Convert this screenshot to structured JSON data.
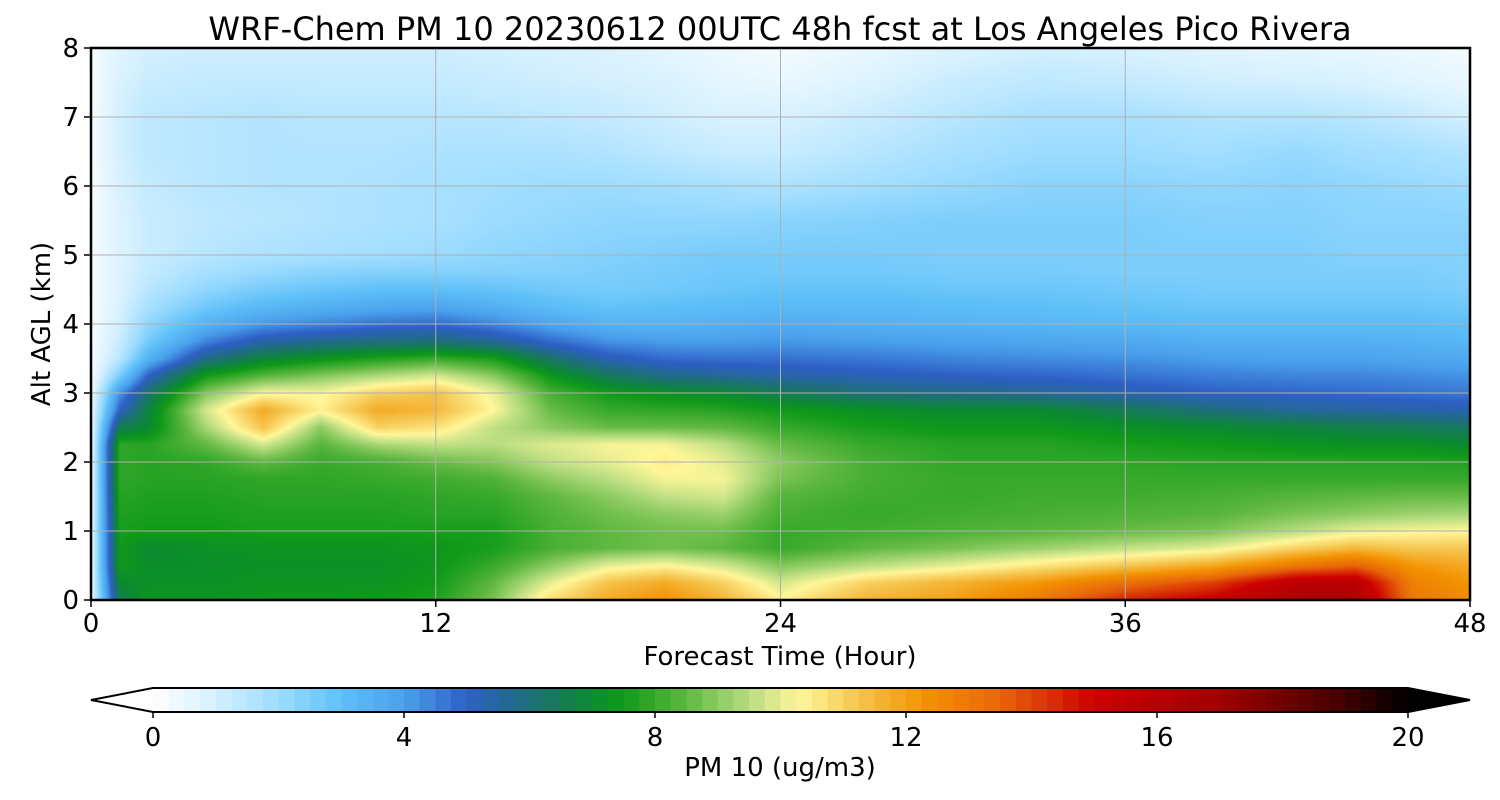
{
  "chart_data": {
    "type": "heatmap",
    "title": "WRF-Chem PM 10  20230612 00UTC 48h fcst at Los Angeles Pico Rivera",
    "xlabel": "Forecast Time (Hour)",
    "ylabel": "Alt AGL (km)",
    "xlim": [
      0,
      48
    ],
    "ylim": [
      0,
      8
    ],
    "x_ticks": [
      0,
      12,
      24,
      36,
      48
    ],
    "y_ticks": [
      0,
      1,
      2,
      3,
      4,
      5,
      6,
      7,
      8
    ],
    "grid": true,
    "colorbar": {
      "label": "PM 10  (ug/m3)",
      "min": 0,
      "max": 20,
      "ticks": [
        0,
        4,
        8,
        12,
        16,
        20
      ],
      "extend": "both",
      "placement": "bottom",
      "stops": [
        {
          "v": 0,
          "c": "#ffffff"
        },
        {
          "v": 1,
          "c": "#d4f0ff"
        },
        {
          "v": 2,
          "c": "#9ddcff"
        },
        {
          "v": 3,
          "c": "#5ec0f8"
        },
        {
          "v": 4,
          "c": "#4aa0ec"
        },
        {
          "v": 5,
          "c": "#2e5fc6"
        },
        {
          "v": 6,
          "c": "#1d6f78"
        },
        {
          "v": 7,
          "c": "#0b8a30"
        },
        {
          "v": 7.5,
          "c": "#109a18"
        },
        {
          "v": 8.5,
          "c": "#5fb840"
        },
        {
          "v": 9.5,
          "c": "#b8dd80"
        },
        {
          "v": 10.3,
          "c": "#fff79a"
        },
        {
          "v": 11.3,
          "c": "#f5c24a"
        },
        {
          "v": 12.3,
          "c": "#f39200"
        },
        {
          "v": 13.5,
          "c": "#e8650a"
        },
        {
          "v": 15,
          "c": "#cd0000"
        },
        {
          "v": 17,
          "c": "#a00000"
        },
        {
          "v": 19,
          "c": "#400000"
        },
        {
          "v": 20,
          "c": "#000000"
        }
      ]
    },
    "x": [
      0,
      1,
      2,
      4,
      6,
      8,
      10,
      12,
      14,
      16,
      18,
      20,
      22,
      24,
      27,
      30,
      33,
      36,
      39,
      42,
      44,
      46,
      48
    ],
    "y": [
      0,
      0.25,
      0.5,
      0.75,
      1,
      1.25,
      1.5,
      1.75,
      2,
      2.25,
      2.5,
      2.75,
      3,
      3.25,
      3.5,
      3.75,
      4,
      4.25,
      4.5,
      4.75,
      5,
      5.5,
      6,
      6.5,
      7,
      7.5,
      8
    ],
    "values": [
      [
        0.5,
        6.5,
        7.3,
        7.3,
        7.4,
        7.4,
        7.5,
        7.7,
        8.8,
        10.8,
        11.8,
        12.3,
        11.6,
        10.4,
        11.6,
        12.0,
        13.0,
        14.5,
        15.2,
        16.5,
        16.5,
        13.0,
        12.5
      ],
      [
        0.5,
        7.0,
        7.2,
        7.2,
        7.3,
        7.3,
        7.3,
        7.5,
        8.5,
        10.0,
        11.3,
        11.8,
        11.0,
        9.8,
        11.0,
        11.6,
        12.2,
        13.2,
        14.0,
        15.8,
        15.8,
        12.8,
        12.2
      ],
      [
        0.5,
        7.5,
        7.1,
        7.1,
        7.2,
        7.2,
        7.2,
        7.4,
        8.0,
        9.0,
        10.0,
        10.3,
        9.8,
        8.9,
        9.5,
        10.0,
        10.6,
        11.2,
        11.8,
        13.0,
        13.5,
        12.2,
        11.8
      ],
      [
        0.5,
        7.5,
        7.0,
        7.2,
        7.3,
        7.3,
        7.3,
        7.4,
        7.6,
        8.2,
        8.5,
        8.7,
        8.5,
        8.0,
        8.5,
        8.8,
        9.2,
        9.6,
        10.0,
        11.0,
        11.5,
        11.2,
        11.2
      ],
      [
        0.5,
        7.6,
        7.5,
        7.5,
        7.6,
        7.6,
        7.6,
        7.6,
        7.6,
        8.2,
        8.5,
        8.7,
        8.7,
        8.0,
        8.1,
        8.3,
        8.4,
        8.6,
        8.8,
        9.5,
        10.0,
        10.2,
        10.3
      ],
      [
        0.5,
        7.7,
        7.6,
        7.6,
        7.7,
        7.7,
        7.7,
        7.8,
        7.8,
        8.3,
        8.7,
        9.0,
        9.2,
        8.2,
        8.0,
        8.1,
        8.2,
        8.3,
        8.4,
        8.8,
        9.0,
        9.2,
        9.3
      ],
      [
        0.5,
        7.8,
        7.7,
        7.7,
        7.8,
        7.8,
        7.8,
        7.9,
        8.0,
        8.5,
        9.0,
        9.6,
        9.8,
        8.4,
        8.1,
        8.0,
        8.1,
        8.1,
        8.2,
        8.4,
        8.5,
        8.6,
        8.6
      ],
      [
        0.5,
        7.9,
        7.8,
        7.8,
        7.9,
        7.9,
        8.0,
        8.1,
        8.3,
        9.0,
        9.5,
        10.2,
        10.2,
        8.8,
        8.2,
        8.0,
        8.0,
        8.0,
        8.0,
        8.0,
        8.0,
        8.0,
        8.0
      ],
      [
        0.5,
        7.9,
        7.8,
        7.9,
        8.5,
        8.0,
        8.2,
        8.6,
        8.9,
        9.6,
        10.0,
        10.5,
        10.0,
        9.0,
        8.2,
        7.9,
        7.9,
        7.9,
        7.8,
        7.8,
        7.8,
        7.8,
        7.7
      ],
      [
        0.5,
        7.9,
        7.8,
        8.5,
        9.8,
        8.4,
        9.3,
        9.6,
        9.5,
        9.9,
        10.2,
        10.2,
        9.6,
        8.6,
        8.0,
        7.8,
        7.8,
        7.6,
        7.5,
        7.3,
        7.2,
        7.2,
        7.0
      ],
      [
        0.5,
        6.5,
        7.0,
        9.3,
        11.3,
        9.0,
        11.0,
        10.7,
        9.6,
        9.0,
        8.6,
        8.6,
        8.5,
        8.0,
        7.6,
        7.4,
        7.4,
        7.2,
        7.0,
        6.8,
        6.6,
        6.5,
        6.3
      ],
      [
        0.5,
        5.0,
        6.8,
        9.8,
        11.8,
        10.4,
        11.8,
        11.5,
        10.3,
        8.6,
        8.0,
        7.9,
        7.8,
        7.5,
        7.2,
        7.0,
        7.0,
        6.5,
        6.0,
        5.6,
        5.5,
        5.4,
        5.3
      ],
      [
        0.3,
        4.2,
        6.2,
        8.9,
        10.2,
        10.2,
        11.0,
        11.3,
        10.1,
        8.2,
        7.5,
        7.2,
        7.0,
        6.5,
        6.0,
        5.8,
        5.6,
        5.3,
        5.0,
        4.9,
        4.8,
        4.7,
        4.6
      ],
      [
        0.2,
        2.5,
        5.0,
        7.5,
        8.4,
        8.9,
        9.4,
        9.8,
        9.0,
        7.4,
        6.4,
        5.8,
        5.6,
        5.4,
        5.2,
        5.0,
        4.9,
        4.7,
        4.5,
        4.4,
        4.4,
        4.3,
        4.2
      ],
      [
        0.2,
        1.5,
        3.4,
        5.8,
        6.8,
        7.3,
        7.7,
        8.0,
        7.6,
        6.2,
        5.2,
        4.8,
        4.7,
        4.7,
        4.6,
        4.4,
        4.3,
        4.2,
        4.0,
        3.9,
        3.9,
        3.8,
        3.7
      ],
      [
        0.2,
        1.2,
        2.6,
        4.4,
        5.4,
        5.7,
        5.9,
        6.0,
        5.6,
        4.8,
        4.2,
        4.0,
        4.0,
        4.1,
        4.0,
        3.9,
        3.8,
        3.7,
        3.5,
        3.5,
        3.5,
        3.4,
        3.3
      ],
      [
        0.2,
        1.0,
        2.2,
        3.4,
        4.1,
        4.4,
        4.7,
        4.8,
        4.4,
        3.8,
        3.4,
        3.4,
        3.5,
        3.6,
        3.5,
        3.4,
        3.3,
        3.2,
        3.1,
        3.1,
        3.1,
        3.1,
        3.0
      ],
      [
        0.2,
        0.9,
        1.8,
        2.7,
        3.2,
        3.5,
        3.7,
        3.8,
        3.5,
        3.1,
        2.9,
        3.0,
        3.1,
        3.2,
        3.2,
        3.1,
        3.0,
        2.9,
        2.8,
        2.8,
        2.8,
        2.8,
        2.7
      ],
      [
        0.2,
        0.8,
        1.5,
        2.2,
        2.6,
        2.8,
        3.0,
        3.0,
        2.9,
        2.7,
        2.6,
        2.7,
        2.8,
        2.9,
        2.9,
        2.8,
        2.8,
        2.7,
        2.6,
        2.6,
        2.6,
        2.6,
        2.5
      ],
      [
        0.2,
        0.8,
        1.3,
        1.8,
        2.1,
        2.3,
        2.4,
        2.4,
        2.4,
        2.4,
        2.5,
        2.6,
        2.7,
        2.7,
        2.7,
        2.6,
        2.6,
        2.5,
        2.5,
        2.5,
        2.5,
        2.5,
        2.4
      ],
      [
        0.2,
        0.8,
        1.2,
        1.5,
        1.7,
        1.8,
        1.9,
        2.0,
        2.2,
        2.3,
        2.4,
        2.5,
        2.6,
        2.6,
        2.6,
        2.5,
        2.5,
        2.5,
        2.5,
        2.5,
        2.4,
        2.4,
        2.4
      ],
      [
        0.2,
        0.8,
        1.2,
        1.4,
        1.5,
        1.6,
        1.7,
        1.8,
        2.0,
        2.1,
        2.2,
        2.2,
        2.2,
        2.3,
        2.4,
        2.5,
        2.5,
        2.5,
        2.4,
        2.4,
        2.3,
        2.3,
        2.3
      ],
      [
        0.2,
        0.9,
        1.3,
        1.5,
        1.6,
        1.6,
        1.7,
        1.8,
        1.9,
        2.0,
        2.0,
        1.9,
        1.8,
        1.7,
        1.9,
        2.1,
        2.3,
        2.3,
        2.2,
        2.3,
        2.2,
        2.1,
        2.0
      ],
      [
        0.2,
        1.0,
        1.4,
        1.5,
        1.6,
        1.6,
        1.6,
        1.7,
        1.7,
        1.7,
        1.6,
        1.4,
        1.2,
        1.2,
        1.5,
        1.8,
        2.0,
        2.0,
        1.9,
        2.1,
        1.9,
        1.8,
        1.6
      ],
      [
        0.2,
        1.0,
        1.4,
        1.5,
        1.6,
        1.5,
        1.5,
        1.5,
        1.5,
        1.4,
        1.3,
        1.1,
        0.9,
        0.9,
        1.2,
        1.5,
        1.8,
        1.8,
        1.6,
        1.6,
        1.5,
        1.3,
        1.0
      ],
      [
        0.2,
        0.9,
        1.2,
        1.3,
        1.3,
        1.3,
        1.3,
        1.3,
        1.2,
        1.1,
        1.0,
        0.9,
        0.6,
        0.5,
        0.8,
        1.2,
        1.4,
        1.3,
        1.1,
        1.0,
        0.9,
        0.7,
        0.5
      ],
      [
        0.2,
        0.7,
        1.0,
        1.1,
        1.1,
        1.1,
        1.1,
        1.1,
        1.0,
        0.9,
        0.8,
        0.6,
        0.4,
        0.3,
        0.5,
        0.8,
        1.0,
        0.9,
        0.7,
        0.6,
        0.5,
        0.4,
        0.3
      ]
    ]
  }
}
